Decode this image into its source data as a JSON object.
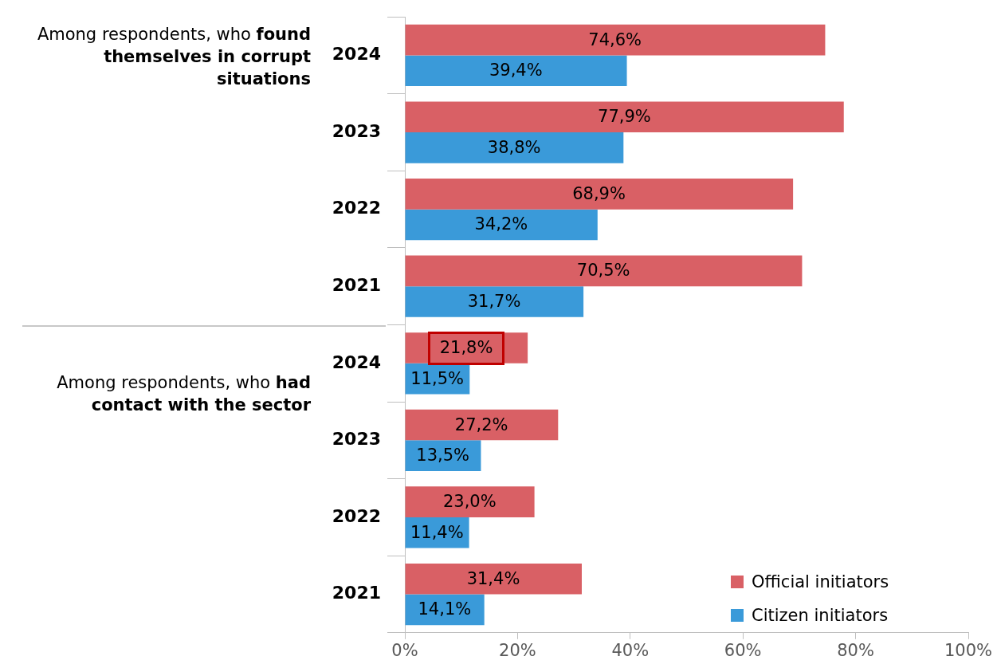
{
  "chart_data": {
    "type": "bar",
    "orientation": "horizontal",
    "categories": [
      "2024",
      "2023",
      "2022",
      "2021",
      "2024",
      "2023",
      "2022",
      "2021"
    ],
    "series": [
      {
        "name": "Official initiators",
        "color": "#d96065",
        "values": [
          74.6,
          77.9,
          68.9,
          70.5,
          21.8,
          27.2,
          23.0,
          31.4
        ],
        "value_labels": [
          "74,6%",
          "77,9%",
          "68,9%",
          "70,5%",
          "21,8%",
          "27,2%",
          "23,0%",
          "31,4%"
        ]
      },
      {
        "name": "Citizen initiators",
        "color": "#3a9ad9",
        "values": [
          39.4,
          38.8,
          34.2,
          31.7,
          11.5,
          13.5,
          11.4,
          14.1
        ],
        "value_labels": [
          "39,4%",
          "38,8%",
          "34,2%",
          "31,7%",
          "11,5%",
          "13,5%",
          "11,4%",
          "14,1%"
        ]
      }
    ],
    "xlim": [
      0,
      100
    ],
    "xticks": [
      {
        "value": 0,
        "label": "0%"
      },
      {
        "value": 20,
        "label": "20%"
      },
      {
        "value": 40,
        "label": "40%"
      },
      {
        "value": 60,
        "label": "60%"
      },
      {
        "value": 80,
        "label": "80%"
      },
      {
        "value": 100,
        "label": "100%"
      }
    ],
    "annotations": [
      "Among respondents, who",
      "found themselves in corrupt situations",
      "Among respondents, who",
      "had contact with the sector"
    ],
    "grid": false,
    "legend": "bottom right"
  }
}
